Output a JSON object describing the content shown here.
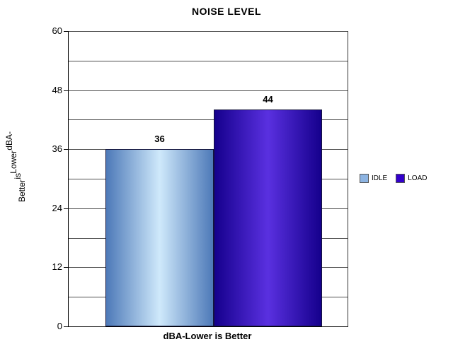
{
  "chart_data": {
    "type": "bar",
    "title": "NOISE LEVEL",
    "xlabel": "dBA-Lower is Better",
    "ylabel": "dBA-Lower is Better",
    "ylim": [
      0,
      60
    ],
    "ytick_step_major": 12,
    "ytick_step_minor": 6,
    "ytick_labels": [
      "0",
      "12",
      "24",
      "36",
      "48",
      "60"
    ],
    "grid": "horizontal",
    "legend_position": "right",
    "categories": [
      "IDLE",
      "LOAD"
    ],
    "values": [
      36,
      44
    ],
    "data_labels": [
      "36",
      "44"
    ],
    "series_colors": [
      {
        "name": "IDLE",
        "legend": "#8db4e2",
        "edge": "#4d79b8",
        "center": "#cfe9fb"
      },
      {
        "name": "LOAD",
        "legend": "#3300cc",
        "edge": "#15008c",
        "center": "#5a30e0"
      }
    ]
  }
}
